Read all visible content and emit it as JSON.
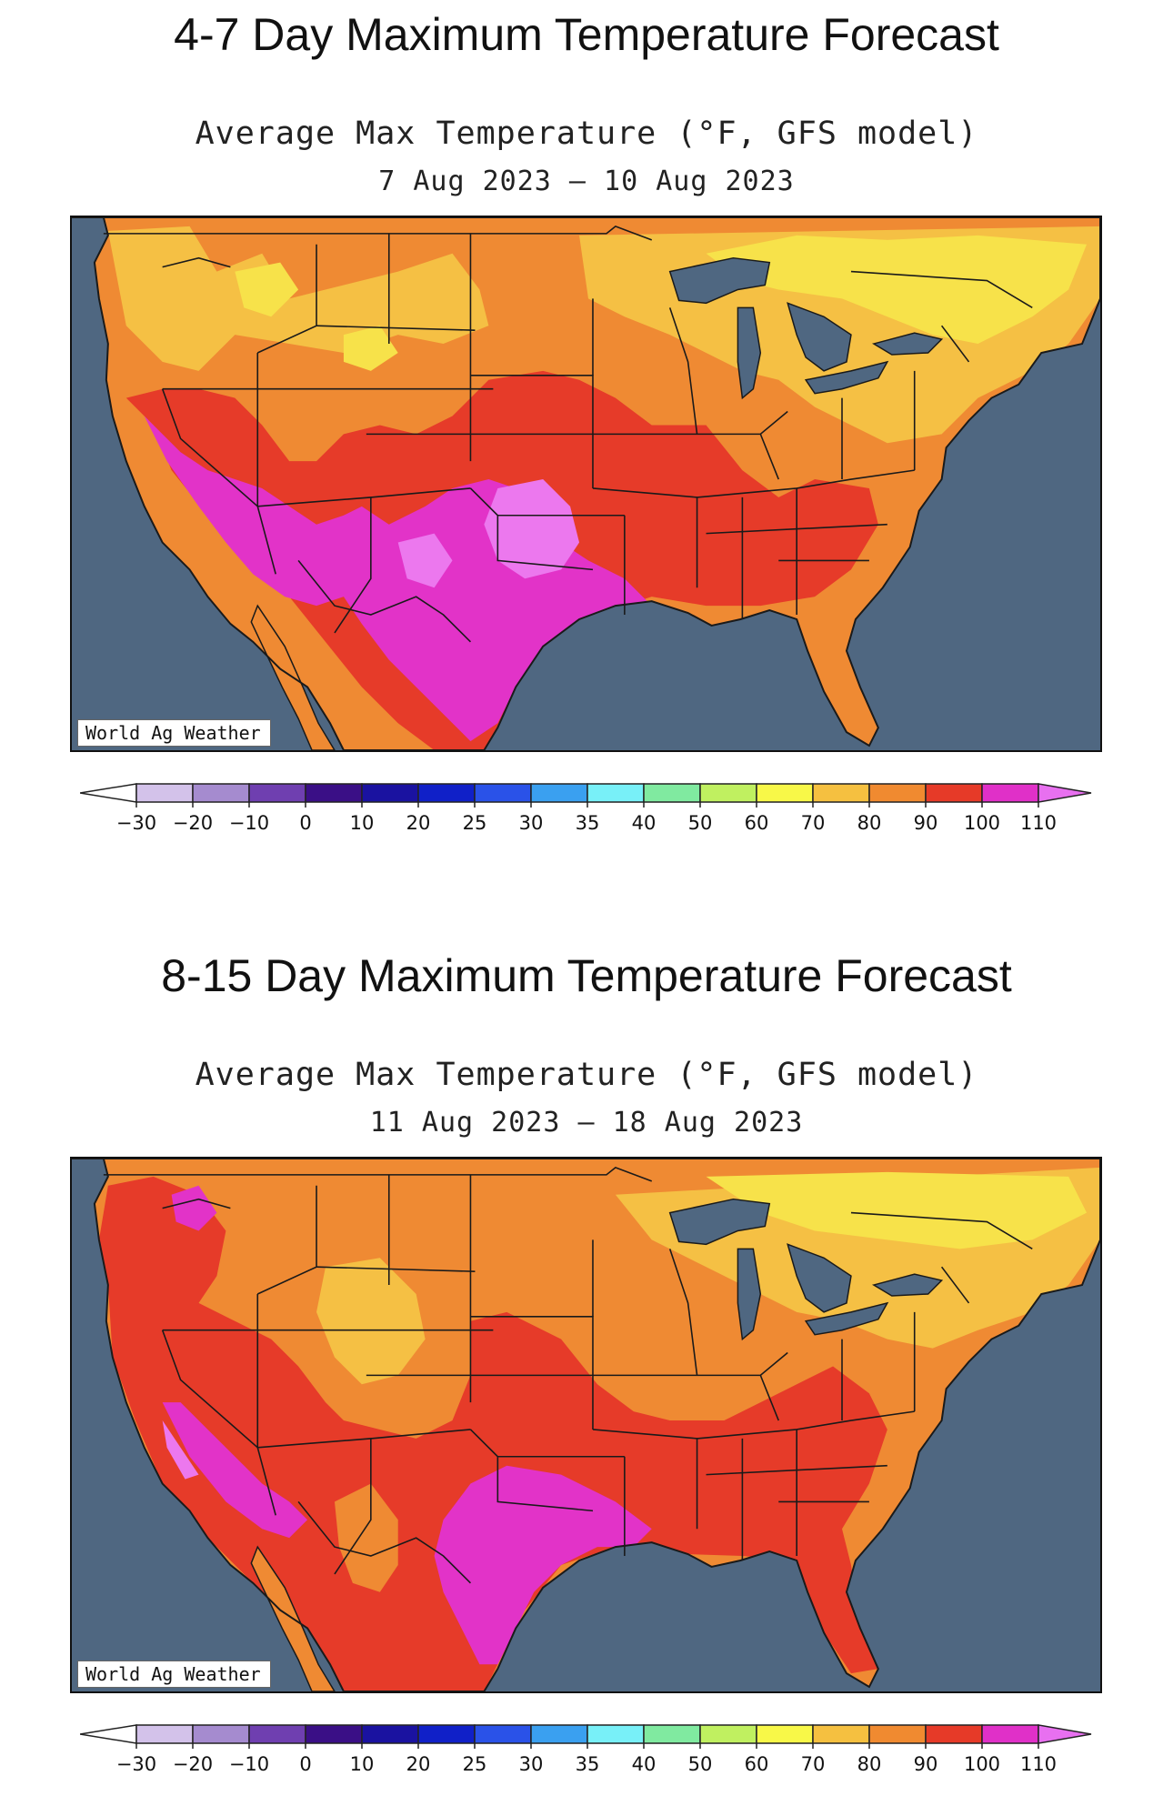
{
  "panels": [
    {
      "section_title": "4-7 Day Maximum Temperature Forecast",
      "map_title": "Average Max Temperature (°F, GFS model)",
      "dates": "7 Aug 2023 – 10 Aug 2023",
      "credit": "World Ag Weather",
      "variant": "short"
    },
    {
      "section_title": "8-15 Day Maximum Temperature Forecast",
      "map_title": "Average Max Temperature (°F, GFS model)",
      "dates": "11 Aug 2023 – 18 Aug 2023",
      "credit": "World Ag Weather",
      "variant": "long"
    }
  ],
  "legend": {
    "labels": [
      "−30",
      "−20",
      "−10",
      "0",
      "10",
      "20",
      "25",
      "30",
      "35",
      "40",
      "50",
      "60",
      "70",
      "80",
      "90",
      "100",
      "110"
    ],
    "colors": [
      "#ffffff",
      "#d3c2ea",
      "#a58bcf",
      "#6f3fb0",
      "#3a0f86",
      "#1a12a0",
      "#1020c8",
      "#2a52e8",
      "#3aa0f0",
      "#78f0f8",
      "#80eaa0",
      "#c0f060",
      "#f8f848",
      "#f5c040",
      "#f08a30",
      "#e63a28",
      "#e030c8",
      "#e870f0"
    ]
  },
  "map_colors": {
    "ocean": "#4f6781",
    "c70": "#f7e24a",
    "c80": "#f5c044",
    "c90": "#ef8a33",
    "c100": "#e63b29",
    "c110": "#e233c8",
    "c115": "#ec78ee",
    "boundary": "#1a1a1a"
  }
}
